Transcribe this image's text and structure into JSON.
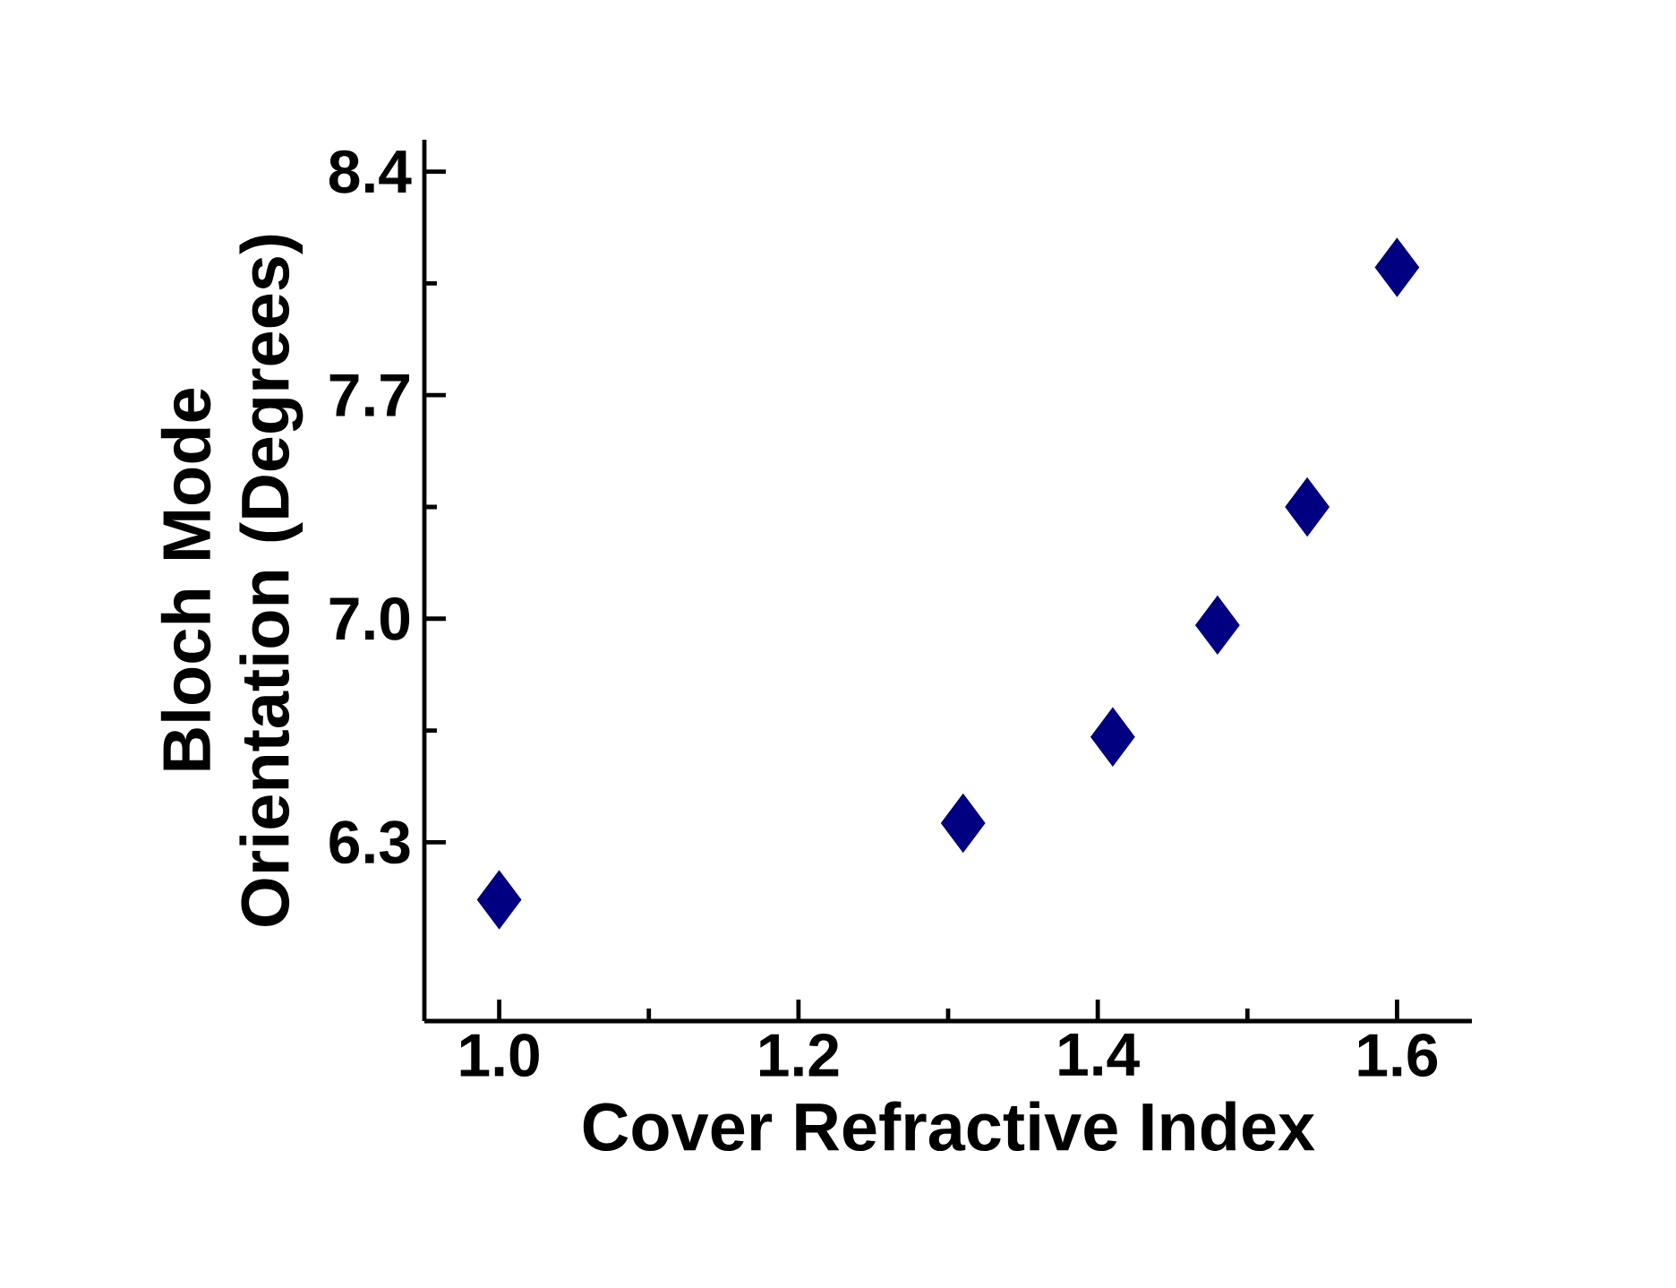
{
  "chart_data": {
    "type": "scatter",
    "xlabel": "Cover Refractive Index",
    "ylabel": "Bloch Mode Orientation (Degrees)",
    "x": [
      1.0,
      1.31,
      1.41,
      1.48,
      1.54,
      1.6
    ],
    "series": [
      {
        "color": "#000080",
        "values": [
          6.12,
          6.36,
          6.63,
          6.98,
          7.35,
          8.1
        ]
      }
    ],
    "xlim": [
      0.95,
      1.65
    ],
    "ylim": [
      5.74,
      8.5
    ],
    "xticks": [
      {
        "value": 1.0,
        "label": "1.0"
      },
      1.2,
      1.4,
      1.6
    ],
    "yticks": [
      6.3,
      {
        "value": 7.0,
        "label": "7.0"
      },
      7.7,
      8.4
    ],
    "marker": "diamond",
    "grid": false
  }
}
